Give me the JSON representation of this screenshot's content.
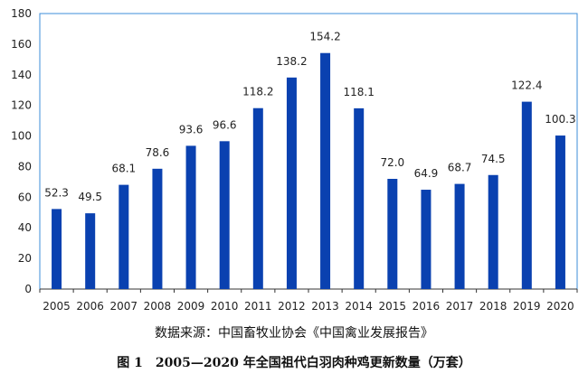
{
  "chart_data": {
    "type": "bar",
    "categories": [
      "2005",
      "2006",
      "2007",
      "2008",
      "2009",
      "2010",
      "2011",
      "2012",
      "2013",
      "2014",
      "2015",
      "2016",
      "2017",
      "2018",
      "2019",
      "2020"
    ],
    "values": [
      52.3,
      49.5,
      68.1,
      78.6,
      93.6,
      96.6,
      118.2,
      138.2,
      154.2,
      118.1,
      72.0,
      64.9,
      68.7,
      74.5,
      122.4,
      100.3
    ],
    "value_labels": [
      "52.3",
      "49.5",
      "68.1",
      "78.6",
      "93.6",
      "96.6",
      "118.2",
      "138.2",
      "154.2",
      "118.1",
      "72.0",
      "64.9",
      "68.7",
      "74.5",
      "122.4",
      "100.3"
    ],
    "y_ticks": [
      0,
      20,
      40,
      60,
      80,
      100,
      120,
      140,
      160,
      180
    ],
    "ylim": [
      0,
      180
    ],
    "grid": false,
    "legend": "none",
    "colors": {
      "bar": "#0a41b0",
      "frame": "#3c8ed8",
      "axis": "#333333"
    }
  },
  "source_note": "数据来源：中国畜牧业协会《中国禽业发展报告》",
  "caption": "图 1　2005—2020 年全国祖代白羽肉种鸡更新数量（万套）"
}
